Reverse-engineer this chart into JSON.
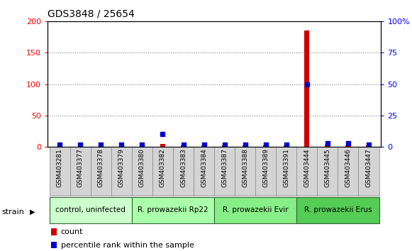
{
  "title": "GDS3848 / 25654",
  "samples": [
    "GSM403281",
    "GSM403377",
    "GSM403378",
    "GSM403379",
    "GSM403380",
    "GSM403382",
    "GSM403383",
    "GSM403384",
    "GSM403387",
    "GSM403388",
    "GSM403389",
    "GSM403391",
    "GSM403444",
    "GSM403445",
    "GSM403446",
    "GSM403447"
  ],
  "count_values": [
    2,
    2,
    2,
    2,
    2,
    5,
    2,
    2,
    2,
    2,
    2,
    2,
    185,
    3,
    2,
    2
  ],
  "percentile_values": [
    2,
    2,
    2,
    2,
    2,
    10,
    2,
    2,
    2,
    2,
    2,
    2,
    50,
    3,
    3,
    2
  ],
  "groups": [
    {
      "label": "control, uninfected",
      "start": 0,
      "end": 4
    },
    {
      "label": "R. prowazekii Rp22",
      "start": 4,
      "end": 8
    },
    {
      "label": "R. prowazekii Evir",
      "start": 8,
      "end": 12
    },
    {
      "label": "R. prowazekii Erus",
      "start": 12,
      "end": 16
    }
  ],
  "group_colors": [
    "#ccffcc",
    "#aaffaa",
    "#88ee88",
    "#55cc55"
  ],
  "left_ylim": [
    0,
    200
  ],
  "right_ylim": [
    0,
    100
  ],
  "left_yticks": [
    0,
    50,
    100,
    150,
    200
  ],
  "right_yticks": [
    0,
    25,
    50,
    75,
    100
  ],
  "right_yticklabels": [
    "0",
    "25",
    "50",
    "75",
    "100%"
  ],
  "count_color": "#cc0000",
  "percentile_color": "#0000cc",
  "bar_width": 0.25,
  "dot_size": 18,
  "label_fontsize": 6.5,
  "group_fontsize": 7.5,
  "title_fontsize": 10
}
